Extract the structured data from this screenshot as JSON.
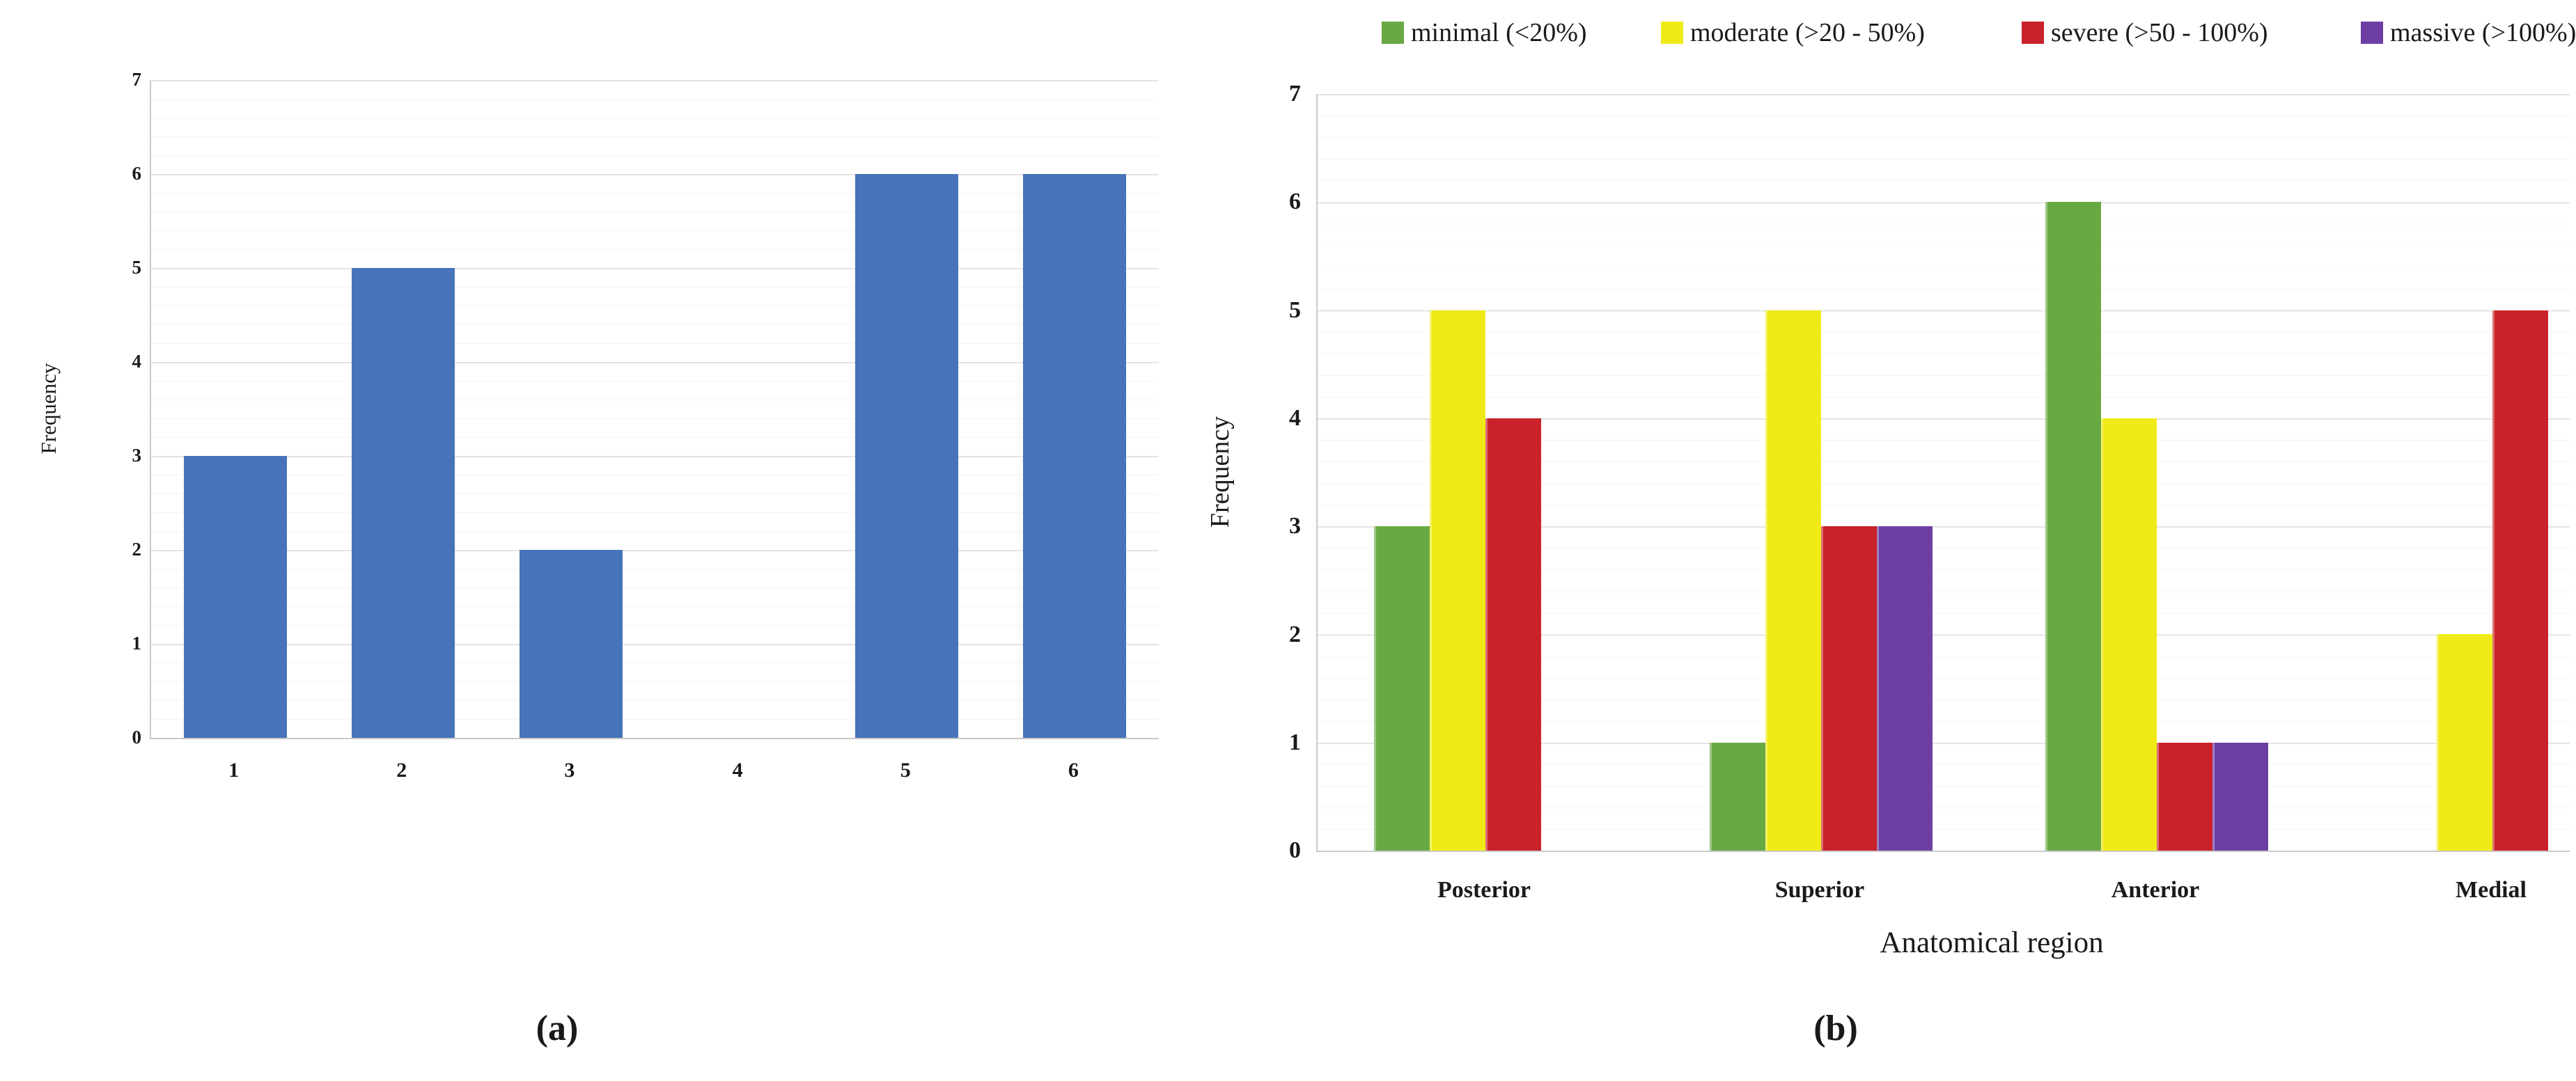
{
  "figure": {
    "caption_a": "(a)",
    "caption_b": "(b)"
  },
  "chart_data": [
    {
      "id": "a",
      "type": "bar",
      "title": "",
      "categories": [
        "1",
        "2",
        "3",
        "4",
        "5",
        "6"
      ],
      "values": [
        3,
        5,
        2,
        0,
        6,
        6
      ],
      "xlabel": "",
      "ylabel": "Frequency",
      "ylim": [
        0,
        7
      ],
      "yticks": [
        0,
        1,
        2,
        3,
        4,
        5,
        6,
        7
      ],
      "bar_color": "#4673B9",
      "grid": true,
      "legend_position": "none"
    },
    {
      "id": "b",
      "type": "bar",
      "title": "",
      "categories": [
        "Posterior",
        "Superior",
        "Anterior",
        "Medial"
      ],
      "series": [
        {
          "name": "minimal (<20%)",
          "color": "#69A944",
          "values": [
            3,
            1,
            6,
            0
          ]
        },
        {
          "name": "moderate (>20 - 50%)",
          "color": "#F0EB16",
          "values": [
            5,
            5,
            4,
            2
          ]
        },
        {
          "name": "severe (>50 - 100%)",
          "color": "#C9222A",
          "values": [
            4,
            3,
            1,
            5
          ]
        },
        {
          "name": "massive (>100%)",
          "color": "#6E3FA3",
          "values": [
            0,
            3,
            1,
            0
          ]
        }
      ],
      "xlabel": "Anatomical region",
      "ylabel": "Frequency",
      "ylim": [
        0,
        7
      ],
      "yticks": [
        0,
        1,
        2,
        3,
        4,
        5,
        6,
        7
      ],
      "grid": true,
      "legend_position": "top"
    }
  ]
}
